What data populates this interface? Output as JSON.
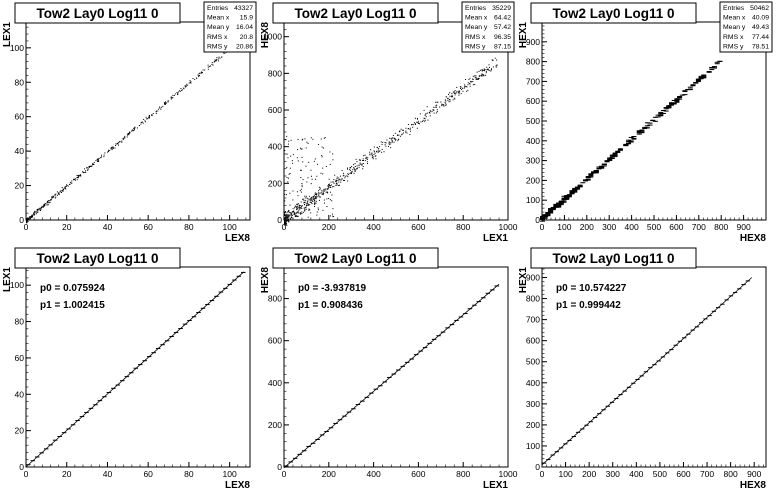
{
  "chart_data": [
    {
      "type": "scatter",
      "title": "Tow2 Lay0 Log11 0",
      "xlabel": "LEX8",
      "ylabel": "LEX1",
      "xlim": [
        0,
        110
      ],
      "ylim": [
        0,
        115
      ],
      "xticks": [
        0,
        20,
        40,
        60,
        80,
        100
      ],
      "yticks": [
        0,
        20,
        40,
        60,
        80,
        100
      ],
      "stats": [
        {
          "label": "Entries",
          "value": "43327"
        },
        {
          "label": "Mean x",
          "value": "15.9"
        },
        {
          "label": "Mean y",
          "value": "16.04"
        },
        {
          "label": "RMS x",
          "value": "20.8"
        },
        {
          "label": "RMS y",
          "value": "20.86"
        }
      ],
      "points_model": {
        "slope": 1.0,
        "intercept": 0.0,
        "x_range": [
          0,
          104
        ],
        "spread": 0.9,
        "n": 420,
        "stepped": false
      }
    },
    {
      "type": "scatter",
      "title": "Tow2 Lay0 Log11 0",
      "xlabel": "LEX1",
      "ylabel": "HEX8",
      "xlim": [
        0,
        1000
      ],
      "ylim": [
        0,
        1080
      ],
      "xticks": [
        0,
        200,
        400,
        600,
        800,
        1000
      ],
      "yticks": [
        0,
        200,
        400,
        600,
        800,
        1000
      ],
      "stats": [
        {
          "label": "Entries",
          "value": "35229"
        },
        {
          "label": "Mean x",
          "value": "64.42"
        },
        {
          "label": "Mean y",
          "value": "57.42"
        },
        {
          "label": "RMS x",
          "value": "96.35"
        },
        {
          "label": "RMS y",
          "value": "87.15"
        }
      ],
      "points_model": {
        "slope": 0.91,
        "intercept": 0.0,
        "x_range": [
          0,
          950
        ],
        "spread": 25,
        "n": 650,
        "stepped": false,
        "noise": 130
      }
    },
    {
      "type": "scatter",
      "title": "Tow2 Lay0 Log11 0",
      "xlabel": "HEX8",
      "ylabel": "HEX1",
      "xlim": [
        0,
        1000
      ],
      "ylim": [
        0,
        1000
      ],
      "xticks": [
        0,
        100,
        200,
        300,
        400,
        500,
        600,
        700,
        800,
        900
      ],
      "yticks": [
        0,
        100,
        200,
        300,
        400,
        500,
        600,
        700,
        800,
        900
      ],
      "stats": [
        {
          "label": "Entries",
          "value": "50462"
        },
        {
          "label": "Mean x",
          "value": "40.09"
        },
        {
          "label": "Mean y",
          "value": "49.43"
        },
        {
          "label": "RMS x",
          "value": "77.44"
        },
        {
          "label": "RMS y",
          "value": "78.51"
        }
      ],
      "points_model": {
        "slope": 1.0,
        "intercept": 10.0,
        "x_range": [
          0,
          800
        ],
        "spread": 8,
        "n": 360,
        "stepped": true
      }
    },
    {
      "type": "line",
      "title": "Tow2 Lay0 Log11 0",
      "xlabel": "LEX8",
      "ylabel": "LEX1",
      "xlim": [
        0,
        110
      ],
      "ylim": [
        0,
        110
      ],
      "xticks": [
        0,
        20,
        40,
        60,
        80,
        100
      ],
      "yticks": [
        0,
        20,
        40,
        60,
        80,
        100
      ],
      "fit": {
        "p0": 0.075924,
        "p1": 1.002415,
        "x_range": [
          0,
          107
        ]
      },
      "fit_text": [
        "p0 = 0.075924",
        "p1 = 1.002415"
      ],
      "profile_step": 2.2
    },
    {
      "type": "line",
      "title": "Tow2 Lay0 Log11 0",
      "xlabel": "LEX1",
      "ylabel": "HEX8",
      "xlim": [
        0,
        1000
      ],
      "ylim": [
        0,
        950
      ],
      "xticks": [
        0,
        200,
        400,
        600,
        800,
        1000
      ],
      "yticks": [
        0,
        200,
        400,
        600,
        800
      ],
      "fit": {
        "p0": -3.937819,
        "p1": 0.908436,
        "x_range": [
          0,
          960
        ]
      },
      "fit_text": [
        "p0 = -3.937819",
        "p1 = 0.908436"
      ],
      "profile_step": 20
    },
    {
      "type": "line",
      "title": "Tow2 Lay0 Log11 0",
      "xlabel": "HEX8",
      "ylabel": "HEX1",
      "xlim": [
        0,
        950
      ],
      "ylim": [
        0,
        950
      ],
      "xticks": [
        0,
        100,
        200,
        300,
        400,
        500,
        600,
        700,
        800,
        900
      ],
      "yticks": [
        0,
        100,
        200,
        300,
        400,
        500,
        600,
        700,
        800,
        900
      ],
      "fit": {
        "p0": 10.574227,
        "p1": 0.999442,
        "x_range": [
          0,
          890
        ]
      },
      "fit_text": [
        "p0 = 10.574227",
        "p1 = 0.999442"
      ],
      "profile_step": 18
    }
  ]
}
